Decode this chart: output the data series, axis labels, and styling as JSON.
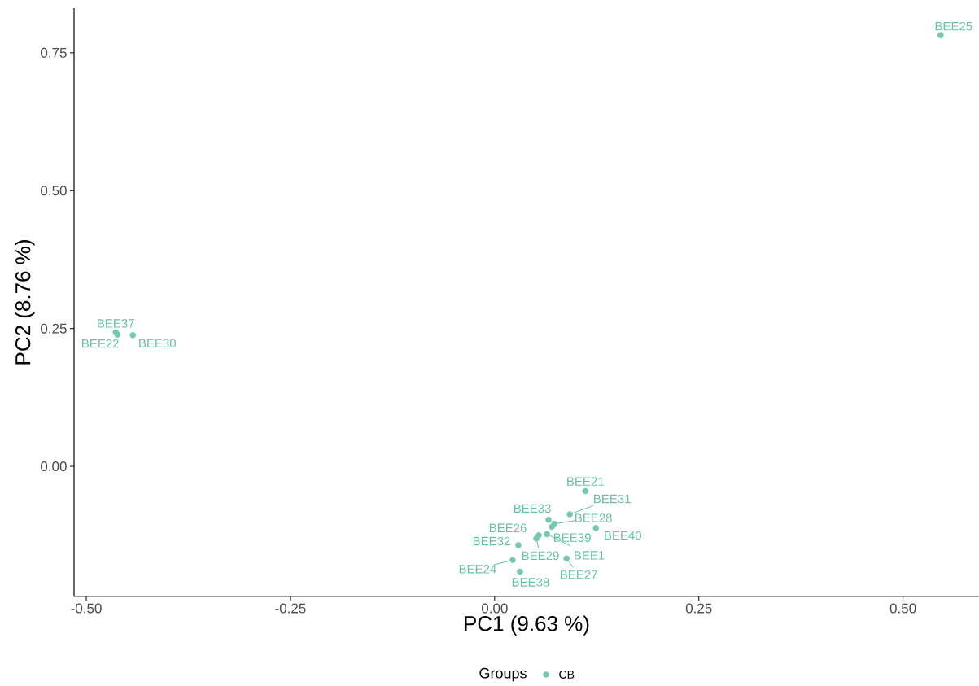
{
  "chart_data": {
    "type": "scatter",
    "xlabel": "PC1 (9.63 %)",
    "ylabel": "PC2 (8.76 %)",
    "legend_title": "Groups",
    "legend": "bottom",
    "marker": "circle",
    "grid": false,
    "xlim": [
      -0.515,
      0.593
    ],
    "ylim": [
      -0.236,
      0.831
    ],
    "xticks": [
      {
        "value": -0.5,
        "label": "-0.50"
      },
      {
        "value": -0.25,
        "label": "-0.25"
      },
      {
        "value": 0,
        "label": "0.00"
      },
      {
        "value": 0.25,
        "label": "0.25"
      },
      {
        "value": 0.5,
        "label": "0.50"
      }
    ],
    "yticks": [
      {
        "value": 0,
        "label": "0.00"
      },
      {
        "value": 0.25,
        "label": "0.25"
      },
      {
        "value": 0.5,
        "label": "0.50"
      },
      {
        "value": 0.75,
        "label": "0.75"
      }
    ],
    "series": [
      {
        "name": "CB",
        "color": "#66c2a5",
        "x": [
          0.111,
          0.092,
          0.066,
          0.073,
          0.07,
          0.124,
          0.054,
          0.051,
          0.029,
          0.022,
          0.064,
          0.088,
          0.031,
          -0.464,
          -0.462,
          -0.443,
          0.546
        ],
        "values": [
          -0.045,
          -0.087,
          -0.097,
          -0.104,
          -0.11,
          -0.112,
          -0.125,
          -0.131,
          -0.143,
          -0.17,
          -0.123,
          -0.167,
          -0.191,
          0.243,
          0.239,
          0.238,
          0.782
        ]
      }
    ],
    "annotations": [
      {
        "text": "BEE21",
        "x": 0.111,
        "y": -0.045
      },
      {
        "text": "BEE31",
        "x": 0.092,
        "y": -0.087
      },
      {
        "text": "BEE33",
        "x": 0.066,
        "y": -0.097
      },
      {
        "text": "BEE28",
        "x": 0.073,
        "y": -0.104
      },
      {
        "text": "BEE39",
        "x": 0.07,
        "y": -0.11
      },
      {
        "text": "BEE40",
        "x": 0.124,
        "y": -0.112
      },
      {
        "text": "BEE26",
        "x": 0.054,
        "y": -0.125
      },
      {
        "text": "BEE29",
        "x": 0.051,
        "y": -0.131
      },
      {
        "text": "BEE32",
        "x": 0.029,
        "y": -0.143
      },
      {
        "text": "BEE24",
        "x": 0.022,
        "y": -0.17
      },
      {
        "text": "BEE1",
        "x": 0.064,
        "y": -0.123
      },
      {
        "text": "BEE27",
        "x": 0.088,
        "y": -0.167
      },
      {
        "text": "BEE38",
        "x": 0.031,
        "y": -0.191
      },
      {
        "text": "BEE37",
        "x": -0.464,
        "y": 0.243
      },
      {
        "text": "BEE22",
        "x": -0.462,
        "y": 0.239
      },
      {
        "text": "BEE30",
        "x": -0.443,
        "y": 0.238
      },
      {
        "text": "BEE25",
        "x": 0.546,
        "y": 0.782
      }
    ]
  }
}
